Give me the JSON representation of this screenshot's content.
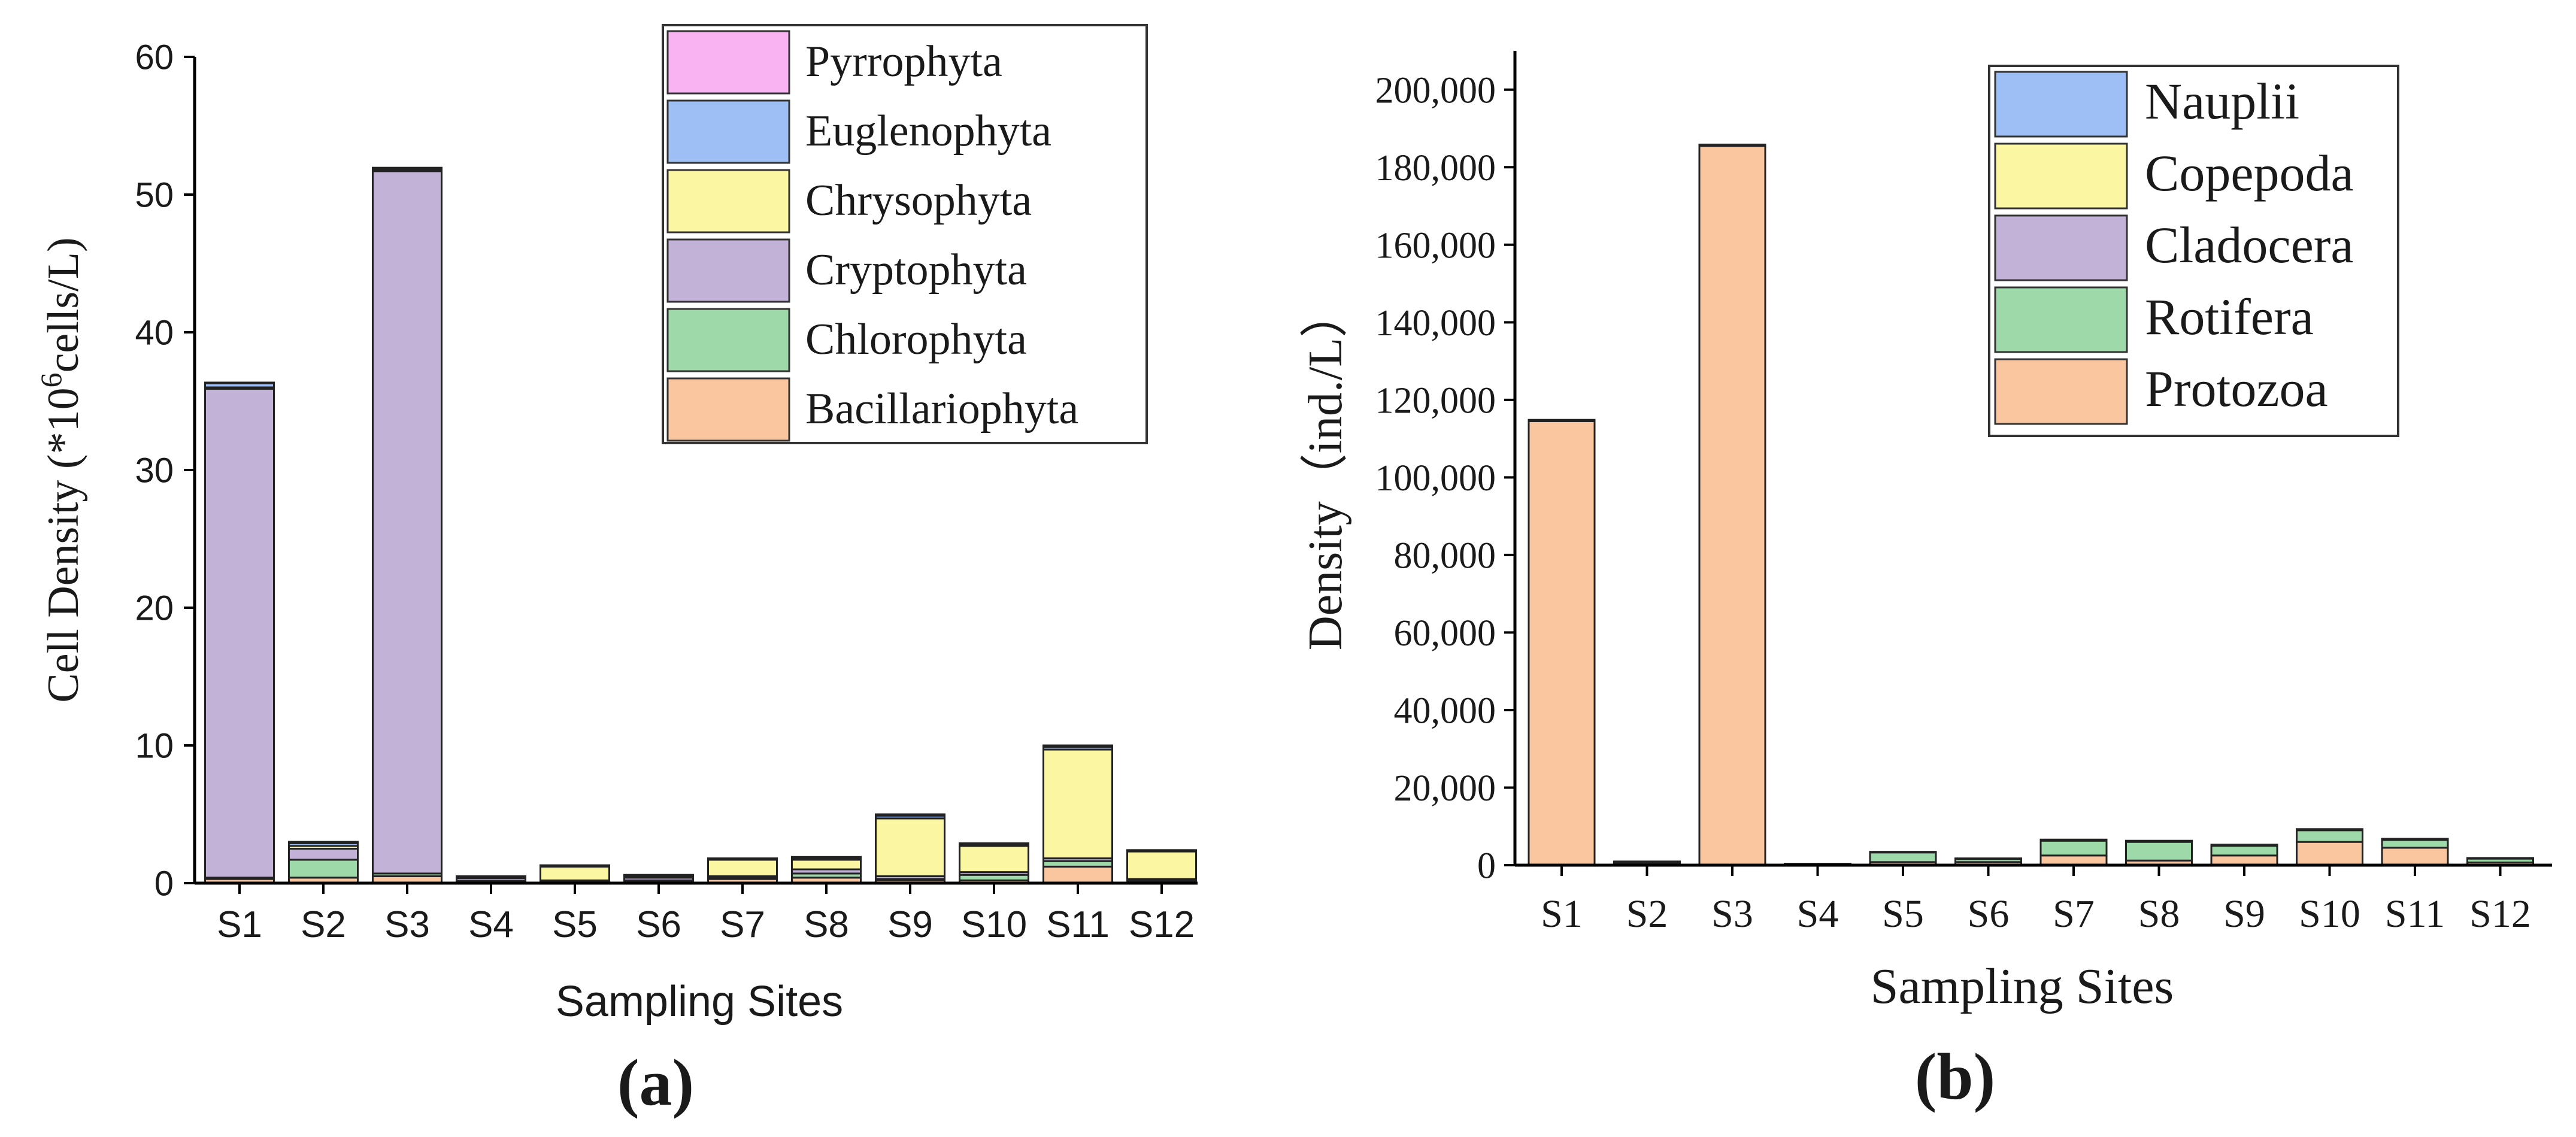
{
  "chart_data": [
    {
      "panel": "(a)",
      "type": "bar",
      "stacked": true,
      "title": "",
      "xlabel": "Sampling Sites",
      "ylabel_pre": "Cell Density (*10",
      "ylabel_sup": "6",
      "ylabel_post": "cells/L)",
      "ylim": [
        0,
        60
      ],
      "yticks": [
        "0",
        "10",
        "20",
        "30",
        "40",
        "50",
        "60"
      ],
      "grid": false,
      "legend_position": "top-right",
      "categories": [
        "S1",
        "S2",
        "S3",
        "S4",
        "S5",
        "S6",
        "S7",
        "S8",
        "S9",
        "S10",
        "S11",
        "S12"
      ],
      "series": [
        {
          "name": "Bacillariophyta",
          "color": "#f9c69f",
          "values": [
            0.3,
            0.4,
            0.5,
            0.1,
            0.1,
            0.1,
            0.3,
            0.4,
            0.2,
            0.2,
            1.2,
            0.1
          ]
        },
        {
          "name": "Chlorophyta",
          "color": "#9ed9a9",
          "values": [
            0.1,
            1.3,
            0.2,
            0.05,
            0.05,
            0.1,
            0.1,
            0.3,
            0.1,
            0.4,
            0.4,
            0.1
          ]
        },
        {
          "name": "Cryptophyta",
          "color": "#c3b2d8",
          "values": [
            35.5,
            0.8,
            51.0,
            0.2,
            0.05,
            0.2,
            0.1,
            0.3,
            0.2,
            0.2,
            0.2,
            0.1
          ]
        },
        {
          "name": "Chrysophyta",
          "color": "#fbf6a1",
          "values": [
            0.1,
            0.2,
            0.1,
            0.05,
            1.0,
            0.1,
            1.2,
            0.7,
            4.2,
            1.9,
            7.9,
            2.0
          ]
        },
        {
          "name": "Euglenophyta",
          "color": "#9dbff5",
          "values": [
            0.3,
            0.2,
            0.1,
            0.05,
            0.05,
            0.05,
            0.05,
            0.1,
            0.2,
            0.1,
            0.2,
            0.05
          ]
        },
        {
          "name": "Pyrrophyta",
          "color": "#fab3f2",
          "values": [
            0.05,
            0.1,
            0.05,
            0.05,
            0.05,
            0.05,
            0.05,
            0.1,
            0.1,
            0.1,
            0.1,
            0.05
          ]
        }
      ]
    },
    {
      "panel": "(b)",
      "type": "bar",
      "stacked": true,
      "title": "",
      "xlabel": "Sampling Sites",
      "ylabel": "Density（ind./L）",
      "ylim": [
        0,
        210000
      ],
      "yticks": [
        "0",
        "20,000",
        "40,000",
        "60,000",
        "80,000",
        "100,000",
        "120,000",
        "140,000",
        "160,000",
        "180,000",
        "200,000"
      ],
      "grid": false,
      "legend_position": "top-right",
      "categories": [
        "S1",
        "S2",
        "S3",
        "S4",
        "S5",
        "S6",
        "S7",
        "S8",
        "S9",
        "S10",
        "S11",
        "S12"
      ],
      "series": [
        {
          "name": "Protozoa",
          "color": "#f9c69f",
          "values": [
            114500,
            600,
            185500,
            200,
            800,
            800,
            2500,
            1200,
            2500,
            6000,
            4500,
            700
          ]
        },
        {
          "name": "Rotifera",
          "color": "#9ed9a9",
          "values": [
            200,
            200,
            200,
            100,
            2500,
            800,
            3800,
            4800,
            2500,
            3000,
            2000,
            1000
          ]
        },
        {
          "name": "Cladocera",
          "color": "#c3b2d8",
          "values": [
            50,
            50,
            50,
            20,
            50,
            50,
            100,
            100,
            100,
            100,
            100,
            50
          ]
        },
        {
          "name": "Copepoda",
          "color": "#fbf6a1",
          "values": [
            50,
            50,
            50,
            20,
            50,
            50,
            100,
            100,
            100,
            100,
            100,
            50
          ]
        },
        {
          "name": "Nauplii",
          "color": "#9dbff5",
          "values": [
            50,
            50,
            50,
            20,
            50,
            50,
            100,
            100,
            100,
            100,
            100,
            50
          ]
        }
      ]
    }
  ],
  "panel_labels": {
    "a": "(a)",
    "b": "(b)"
  }
}
